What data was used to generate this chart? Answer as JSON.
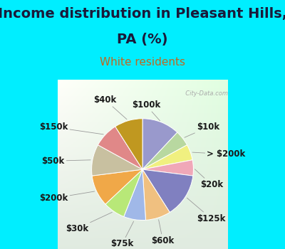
{
  "title_line1": "Income distribution in Pleasant Hills,",
  "title_line2": "PA (%)",
  "subtitle": "White residents",
  "labels": [
    "$100k",
    "$10k",
    "> $200k",
    "$20k",
    "$125k",
    "$60k",
    "$75k",
    "$30k",
    "$200k",
    "$50k",
    "$150k",
    "$40k"
  ],
  "values": [
    12,
    5,
    5,
    5,
    14,
    8,
    7,
    7,
    10,
    10,
    8,
    9
  ],
  "colors": [
    "#9999cc",
    "#b8d8a0",
    "#f0f080",
    "#f0a8b8",
    "#8080c0",
    "#f0c080",
    "#a0b8e8",
    "#b8e878",
    "#f0a848",
    "#c8c0a0",
    "#e08888",
    "#c09820"
  ],
  "bg_cyan": "#00eeff",
  "watermark": "  City-Data.com",
  "title_fontsize": 14,
  "subtitle_fontsize": 11,
  "label_fontsize": 8.5
}
